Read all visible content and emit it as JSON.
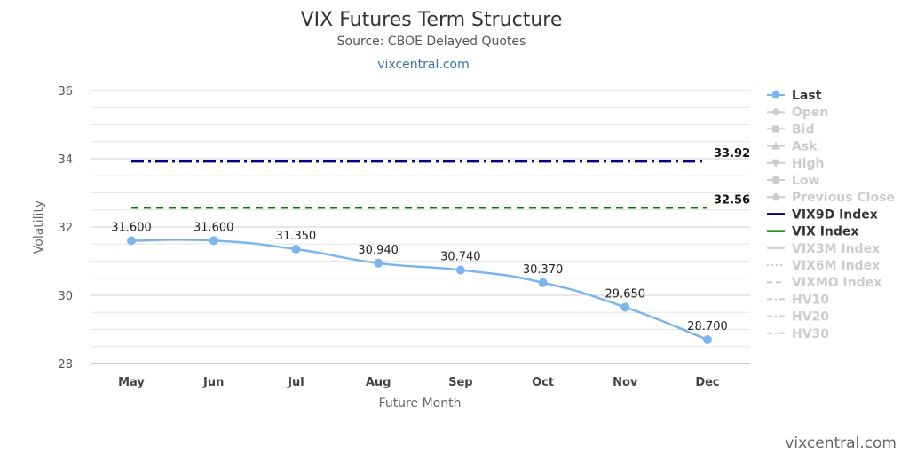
{
  "title": "VIX Futures Term Structure",
  "subtitle": "Source: CBOE Delayed Quotes",
  "link": "vixcentral.com",
  "credit": "vixcentral.com",
  "colors": {
    "last": "#7cb5ec",
    "vix9d": "#000080",
    "vix": "#008000",
    "inactive": "#cccccc",
    "active_text": "#333333"
  },
  "chart_data": {
    "type": "line",
    "title": "VIX Futures Term Structure",
    "subtitle": "Source: CBOE Delayed Quotes",
    "xlabel": "Future Month",
    "ylabel": "Volatility",
    "categories": [
      "May",
      "Jun",
      "Jul",
      "Aug",
      "Sep",
      "Oct",
      "Nov",
      "Dec"
    ],
    "ylim": [
      28,
      36
    ],
    "yticks": [
      28,
      30,
      32,
      34,
      36
    ],
    "grid": true,
    "legend_position": "right",
    "series": [
      {
        "name": "Last",
        "values": [
          31.6,
          31.6,
          31.35,
          30.94,
          30.74,
          30.37,
          29.65,
          28.7
        ],
        "labels": [
          "31.600",
          "31.600",
          "31.350",
          "30.940",
          "30.740",
          "30.370",
          "29.650",
          "28.700"
        ]
      }
    ],
    "reference_lines": [
      {
        "name": "VIX9D Index",
        "value": 33.92,
        "label": "33.92"
      },
      {
        "name": "VIX Index",
        "value": 32.56,
        "label": "32.56"
      }
    ],
    "legend": [
      {
        "name": "Last",
        "active": true,
        "symbol": "circle-line",
        "color": "#7cb5ec"
      },
      {
        "name": "Open",
        "active": false,
        "symbol": "diamond-line"
      },
      {
        "name": "Bid",
        "active": false,
        "symbol": "square-line"
      },
      {
        "name": "Ask",
        "active": false,
        "symbol": "triangle-line"
      },
      {
        "name": "High",
        "active": false,
        "symbol": "triangle-down-line"
      },
      {
        "name": "Low",
        "active": false,
        "symbol": "circle-line"
      },
      {
        "name": "Previous Close",
        "active": false,
        "symbol": "diamond-line"
      },
      {
        "name": "VIX9D Index",
        "active": true,
        "symbol": "line",
        "color": "#000080"
      },
      {
        "name": "VIX Index",
        "active": true,
        "symbol": "line",
        "color": "#008000"
      },
      {
        "name": "VIX3M Index",
        "active": false,
        "symbol": "line"
      },
      {
        "name": "VIX6M Index",
        "active": false,
        "symbol": "dotted-line"
      },
      {
        "name": "VIXMO Index",
        "active": false,
        "symbol": "dashed-line"
      },
      {
        "name": "HV10",
        "active": false,
        "symbol": "dashdot-line"
      },
      {
        "name": "HV20",
        "active": false,
        "symbol": "dashdot-line"
      },
      {
        "name": "HV30",
        "active": false,
        "symbol": "dashdot-line"
      }
    ]
  }
}
